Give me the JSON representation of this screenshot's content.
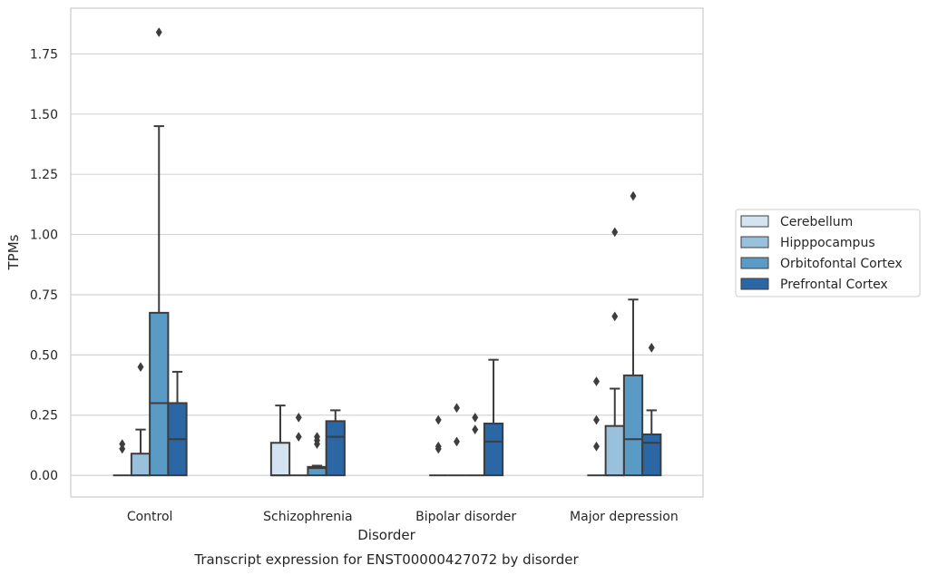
{
  "chart_data": {
    "type": "box",
    "caption": "Transcript expression for ENST00000427072 by disorder",
    "xlabel": "Disorder",
    "ylabel": "TPMs",
    "ylim": [
      -0.09,
      1.94
    ],
    "yticks": [
      "0.00",
      "0.25",
      "0.50",
      "0.75",
      "1.00",
      "1.25",
      "1.50",
      "1.75"
    ],
    "grid": "horizontal",
    "legend_position": "right",
    "categories": [
      "Control",
      "Schizophrenia",
      "Bipolar disorder",
      "Major depression"
    ],
    "series": [
      {
        "name": "Cerebellum",
        "color": "#d3e3f2",
        "boxes": [
          {
            "q1": 0,
            "median": 0,
            "q3": 0,
            "whisker_low": 0,
            "whisker_high": 0,
            "outliers": [
              0.11,
              0.13
            ]
          },
          {
            "q1": 0,
            "median": 0,
            "q3": 0.135,
            "whisker_low": 0,
            "whisker_high": 0.29,
            "outliers": []
          },
          {
            "q1": 0,
            "median": 0,
            "q3": 0,
            "whisker_low": 0,
            "whisker_high": 0,
            "outliers": [
              0.11,
              0.12,
              0.23
            ]
          },
          {
            "q1": 0,
            "median": 0,
            "q3": 0,
            "whisker_low": 0,
            "whisker_high": 0,
            "outliers": [
              0.12,
              0.23,
              0.39
            ]
          }
        ]
      },
      {
        "name": "Hipppocampus",
        "color": "#9ac1dc",
        "boxes": [
          {
            "q1": 0,
            "median": 0,
            "q3": 0.09,
            "whisker_low": 0,
            "whisker_high": 0.19,
            "outliers": [
              0.45
            ]
          },
          {
            "q1": 0,
            "median": 0,
            "q3": 0,
            "whisker_low": 0,
            "whisker_high": 0,
            "outliers": [
              0.16,
              0.24
            ]
          },
          {
            "q1": 0,
            "median": 0,
            "q3": 0,
            "whisker_low": 0,
            "whisker_high": 0,
            "outliers": [
              0.14,
              0.28
            ]
          },
          {
            "q1": 0,
            "median": 0,
            "q3": 0.205,
            "whisker_low": 0,
            "whisker_high": 0.36,
            "outliers": [
              0.66,
              1.01
            ]
          }
        ]
      },
      {
        "name": "Orbitofontal Cortex",
        "color": "#5a9bc6",
        "boxes": [
          {
            "q1": 0,
            "median": 0.3,
            "q3": 0.675,
            "whisker_low": 0,
            "whisker_high": 1.45,
            "outliers": [
              1.84
            ]
          },
          {
            "q1": 0,
            "median": 0.03,
            "q3": 0.035,
            "whisker_low": 0,
            "whisker_high": 0.04,
            "outliers": [
              0.13,
              0.145,
              0.16
            ]
          },
          {
            "q1": 0,
            "median": 0,
            "q3": 0,
            "whisker_low": 0,
            "whisker_high": 0,
            "outliers": [
              0.19,
              0.24
            ]
          },
          {
            "q1": 0,
            "median": 0.15,
            "q3": 0.415,
            "whisker_low": 0,
            "whisker_high": 0.73,
            "outliers": [
              1.16
            ]
          }
        ]
      },
      {
        "name": "Prefrontal Cortex",
        "color": "#2b67a4",
        "boxes": [
          {
            "q1": 0,
            "median": 0.15,
            "q3": 0.3,
            "whisker_low": 0,
            "whisker_high": 0.43,
            "outliers": []
          },
          {
            "q1": 0,
            "median": 0.16,
            "q3": 0.225,
            "whisker_low": 0,
            "whisker_high": 0.27,
            "outliers": []
          },
          {
            "q1": 0,
            "median": 0.14,
            "q3": 0.215,
            "whisker_low": 0,
            "whisker_high": 0.48,
            "outliers": []
          },
          {
            "q1": 0,
            "median": 0.135,
            "q3": 0.17,
            "whisker_low": 0,
            "whisker_high": 0.27,
            "outliers": [
              0.53
            ]
          }
        ]
      }
    ]
  }
}
